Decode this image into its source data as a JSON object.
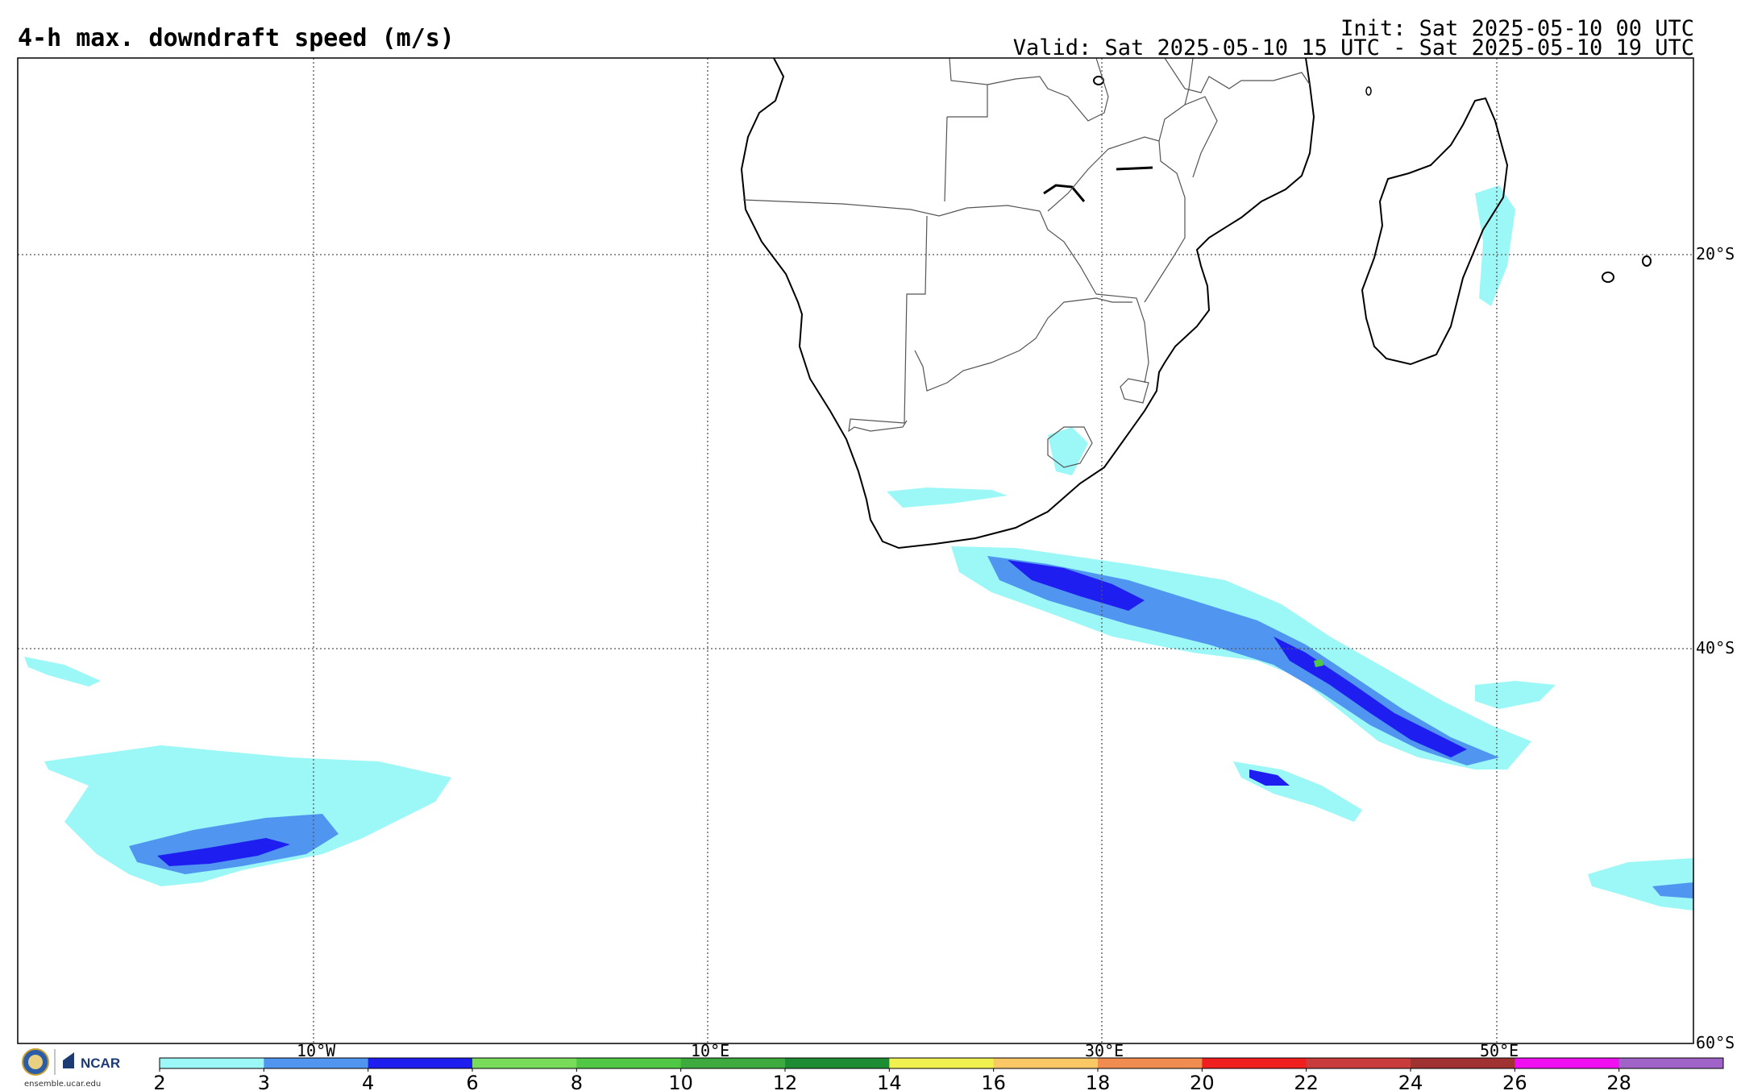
{
  "header": {
    "title": "4-h max. downdraft speed (m/s)",
    "init": "Init: Sat 2025-05-10 00 UTC",
    "valid": "Valid: Sat 2025-05-10 15 UTC - Sat 2025-05-10 19 UTC"
  },
  "map": {
    "projection": "latitude-longitude",
    "gridlines": "dotted",
    "lon_labels": [
      "10°W",
      "10°E",
      "30°E",
      "50°E"
    ],
    "lat_labels": [
      "20°S",
      "40°S",
      "60°S"
    ],
    "land_features": [
      "Africa",
      "Madagascar"
    ]
  },
  "colorbar": {
    "levels": [
      "2",
      "3",
      "4",
      "6",
      "8",
      "10",
      "12",
      "14",
      "16",
      "18",
      "20",
      "22",
      "24",
      "26",
      "28"
    ],
    "colors": [
      "#9cf7f7",
      "#5096f0",
      "#1e1ef0",
      "#78dc5a",
      "#50c846",
      "#3caa3c",
      "#1e8c32",
      "#f0f050",
      "#fac864",
      "#f08c50",
      "#f01e1e",
      "#c83c3c",
      "#a03232",
      "#f00ff0",
      "#a064c8"
    ]
  },
  "footer": {
    "logo_text": "NCAR",
    "url": "ensemble.ucar.edu"
  }
}
